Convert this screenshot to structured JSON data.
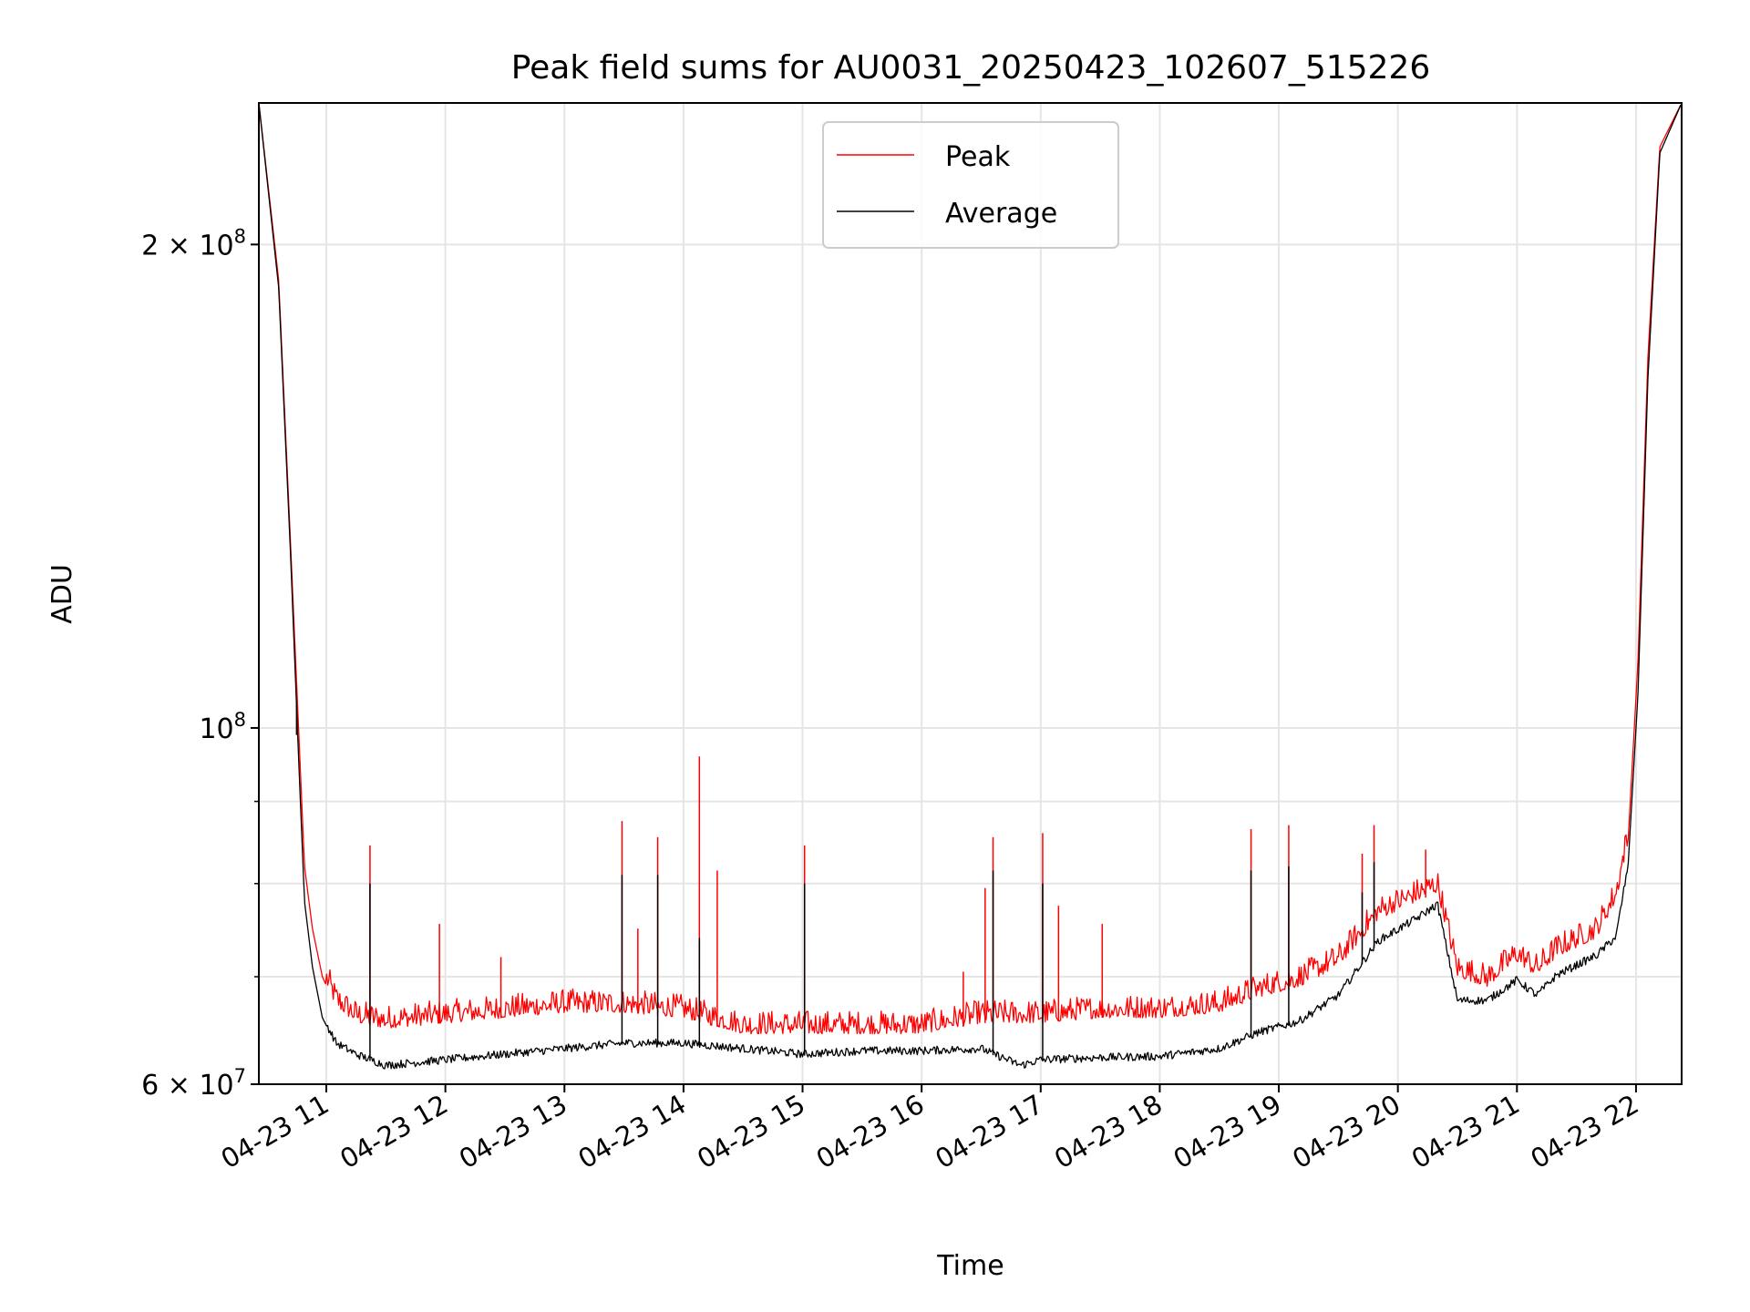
{
  "chart_data": {
    "type": "line",
    "title": "Peak field sums for AU0031_20250423_102607_515226",
    "xlabel": "Time",
    "ylabel": "ADU",
    "yscale": "log",
    "grid": true,
    "legend_position": "upper center",
    "x_ticks": [
      "04-23 11",
      "04-23 12",
      "04-23 13",
      "04-23 14",
      "04-23 15",
      "04-23 16",
      "04-23 17",
      "04-23 18",
      "04-23 19",
      "04-23 20",
      "04-23 21",
      "04-23 22"
    ],
    "xlim": [
      "2025-04-23 10:26",
      "2025-04-23 22:23"
    ],
    "ylim": [
      60000000,
      245000000
    ],
    "y_tick_labels": [
      {
        "value": 60000000,
        "mantissa": "6",
        "base": "10",
        "exp": "7"
      },
      {
        "value": 100000000,
        "mantissa": "",
        "base": "10",
        "exp": "8"
      },
      {
        "value": 200000000,
        "mantissa": "2",
        "base": "10",
        "exp": "8"
      }
    ],
    "y_minor_ticks": [
      70000000,
      80000000,
      90000000
    ],
    "series": [
      {
        "name": "Peak",
        "color": "#ff0000",
        "points": [
          [
            "2025-04-23 10:26",
            245000000
          ],
          [
            "2025-04-23 10:36",
            190000000
          ],
          [
            "2025-04-23 10:42",
            130000000
          ],
          [
            "2025-04-23 10:46",
            100000000
          ],
          [
            "2025-04-23 10:49",
            82000000
          ],
          [
            "2025-04-23 10:53",
            75000000
          ],
          [
            "2025-04-23 10:58",
            70000000
          ],
          [
            "2025-04-23 11:05",
            67000000
          ],
          [
            "2025-04-23 11:15",
            65500000
          ],
          [
            "2025-04-23 11:30",
            65000000
          ],
          [
            "2025-04-23 12:00",
            65500000
          ],
          [
            "2025-04-23 12:30",
            66000000
          ],
          [
            "2025-04-23 13:00",
            66500000
          ],
          [
            "2025-04-23 13:30",
            66500000
          ],
          [
            "2025-04-23 14:00",
            66000000
          ],
          [
            "2025-04-23 14:30",
            64500000
          ],
          [
            "2025-04-23 15:00",
            64500000
          ],
          [
            "2025-04-23 15:30",
            64500000
          ],
          [
            "2025-04-23 16:00",
            64500000
          ],
          [
            "2025-04-23 16:30",
            65500000
          ],
          [
            "2025-04-23 17:00",
            65500000
          ],
          [
            "2025-04-23 17:30",
            66000000
          ],
          [
            "2025-04-23 18:00",
            66000000
          ],
          [
            "2025-04-23 18:30",
            66500000
          ],
          [
            "2025-04-23 18:50",
            68000000
          ],
          [
            "2025-04-23 19:10",
            69000000
          ],
          [
            "2025-04-23 19:30",
            71000000
          ],
          [
            "2025-04-23 19:50",
            76000000
          ],
          [
            "2025-04-23 20:10",
            78000000
          ],
          [
            "2025-04-23 20:20",
            79000000
          ],
          [
            "2025-04-23 20:30",
            70000000
          ],
          [
            "2025-04-23 20:45",
            69000000
          ],
          [
            "2025-04-23 21:00",
            71500000
          ],
          [
            "2025-04-23 21:10",
            70000000
          ],
          [
            "2025-04-23 21:20",
            72000000
          ],
          [
            "2025-04-23 21:40",
            74000000
          ],
          [
            "2025-04-23 21:50",
            78000000
          ],
          [
            "2025-04-23 21:56",
            85000000
          ],
          [
            "2025-04-23 22:01",
            110000000
          ],
          [
            "2025-04-23 22:06",
            170000000
          ],
          [
            "2025-04-23 22:12",
            230000000
          ],
          [
            "2025-04-23 22:23",
            245000000
          ]
        ],
        "spikes": [
          [
            "2025-04-23 10:45",
            103000000
          ],
          [
            "2025-04-23 11:22",
            84500000
          ],
          [
            "2025-04-23 11:57",
            75500000
          ],
          [
            "2025-04-23 12:28",
            72000000
          ],
          [
            "2025-04-23 13:29",
            87500000
          ],
          [
            "2025-04-23 13:37",
            75000000
          ],
          [
            "2025-04-23 13:47",
            85500000
          ],
          [
            "2025-04-23 14:08",
            96000000
          ],
          [
            "2025-04-23 14:17",
            81500000
          ],
          [
            "2025-04-23 15:01",
            84500000
          ],
          [
            "2025-04-23 16:21",
            70500000
          ],
          [
            "2025-04-23 16:32",
            79500000
          ],
          [
            "2025-04-23 16:36",
            85500000
          ],
          [
            "2025-04-23 17:01",
            86000000
          ],
          [
            "2025-04-23 17:09",
            77500000
          ],
          [
            "2025-04-23 17:31",
            75500000
          ],
          [
            "2025-04-23 18:46",
            86500000
          ],
          [
            "2025-04-23 19:05",
            87000000
          ],
          [
            "2025-04-23 19:42",
            83500000
          ],
          [
            "2025-04-23 19:48",
            87000000
          ],
          [
            "2025-04-23 20:14",
            84000000
          ]
        ]
      },
      {
        "name": "Average",
        "color": "#000000",
        "points": [
          [
            "2025-04-23 10:26",
            245000000
          ],
          [
            "2025-04-23 10:36",
            188000000
          ],
          [
            "2025-04-23 10:42",
            128000000
          ],
          [
            "2025-04-23 10:46",
            96000000
          ],
          [
            "2025-04-23 10:49",
            78000000
          ],
          [
            "2025-04-23 10:53",
            71000000
          ],
          [
            "2025-04-23 10:58",
            66000000
          ],
          [
            "2025-04-23 11:05",
            63500000
          ],
          [
            "2025-04-23 11:15",
            62500000
          ],
          [
            "2025-04-23 11:30",
            61500000
          ],
          [
            "2025-04-23 12:00",
            62000000
          ],
          [
            "2025-04-23 12:30",
            62500000
          ],
          [
            "2025-04-23 13:00",
            63000000
          ],
          [
            "2025-04-23 13:30",
            63500000
          ],
          [
            "2025-04-23 14:00",
            63500000
          ],
          [
            "2025-04-23 14:30",
            63000000
          ],
          [
            "2025-04-23 15:00",
            62500000
          ],
          [
            "2025-04-23 15:30",
            62800000
          ],
          [
            "2025-04-23 16:00",
            62800000
          ],
          [
            "2025-04-23 16:30",
            63000000
          ],
          [
            "2025-04-23 16:50",
            61500000
          ],
          [
            "2025-04-23 17:00",
            62000000
          ],
          [
            "2025-04-23 17:30",
            62200000
          ],
          [
            "2025-04-23 18:00",
            62300000
          ],
          [
            "2025-04-23 18:30",
            63000000
          ],
          [
            "2025-04-23 18:50",
            64500000
          ],
          [
            "2025-04-23 19:10",
            65500000
          ],
          [
            "2025-04-23 19:30",
            68000000
          ],
          [
            "2025-04-23 19:50",
            73500000
          ],
          [
            "2025-04-23 20:10",
            76000000
          ],
          [
            "2025-04-23 20:20",
            77500000
          ],
          [
            "2025-04-23 20:30",
            67500000
          ],
          [
            "2025-04-23 20:45",
            67500000
          ],
          [
            "2025-04-23 21:00",
            69500000
          ],
          [
            "2025-04-23 21:10",
            68000000
          ],
          [
            "2025-04-23 21:20",
            70000000
          ],
          [
            "2025-04-23 21:40",
            72000000
          ],
          [
            "2025-04-23 21:50",
            74000000
          ],
          [
            "2025-04-23 21:56",
            82000000
          ],
          [
            "2025-04-23 22:01",
            105000000
          ],
          [
            "2025-04-23 22:06",
            165000000
          ],
          [
            "2025-04-23 22:12",
            228000000
          ],
          [
            "2025-04-23 22:23",
            245000000
          ]
        ],
        "spikes": [
          [
            "2025-04-23 10:45",
            99000000
          ],
          [
            "2025-04-23 11:22",
            80000000
          ],
          [
            "2025-04-23 13:29",
            81000000
          ],
          [
            "2025-04-23 13:47",
            81000000
          ],
          [
            "2025-04-23 14:08",
            74000000
          ],
          [
            "2025-04-23 15:01",
            80000000
          ],
          [
            "2025-04-23 16:36",
            81500000
          ],
          [
            "2025-04-23 17:01",
            80000000
          ],
          [
            "2025-04-23 18:46",
            81500000
          ],
          [
            "2025-04-23 19:05",
            82000000
          ],
          [
            "2025-04-23 19:42",
            79000000
          ],
          [
            "2025-04-23 19:48",
            82500000
          ]
        ]
      }
    ]
  }
}
